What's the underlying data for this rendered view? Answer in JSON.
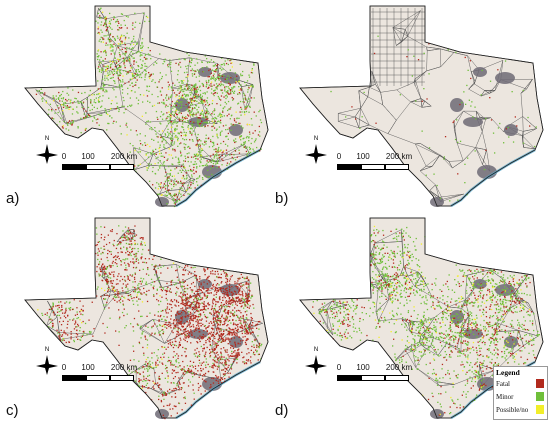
{
  "panels": [
    {
      "id": "a",
      "label": "a)",
      "fatal": 0.25,
      "minor": 1.0,
      "possible": 0.05,
      "dense": true
    },
    {
      "id": "b",
      "label": "b)",
      "fatal": 0.04,
      "minor": 0.18,
      "possible": 0.0,
      "dense": false
    },
    {
      "id": "c",
      "label": "c)",
      "fatal": 1.0,
      "minor": 0.6,
      "possible": 0.05,
      "dense": true
    },
    {
      "id": "d",
      "label": "d)",
      "fatal": 0.3,
      "minor": 0.9,
      "possible": 0.05,
      "dense": true
    }
  ],
  "scale_bar": {
    "ticks": [
      "0",
      "100",
      "200 km"
    ]
  },
  "north_label": "N",
  "legend": {
    "title": "Legend",
    "items": [
      {
        "label": "Fatal",
        "color": "#b22a1e"
      },
      {
        "label": "Minor",
        "color": "#6fbf3a"
      },
      {
        "label": "Possible/no",
        "color": "#f2ee2a"
      }
    ]
  },
  "colors": {
    "land": "#ece6df",
    "roads": "#555555",
    "urban": "#6e6a76",
    "water": "#5aa6c8"
  }
}
